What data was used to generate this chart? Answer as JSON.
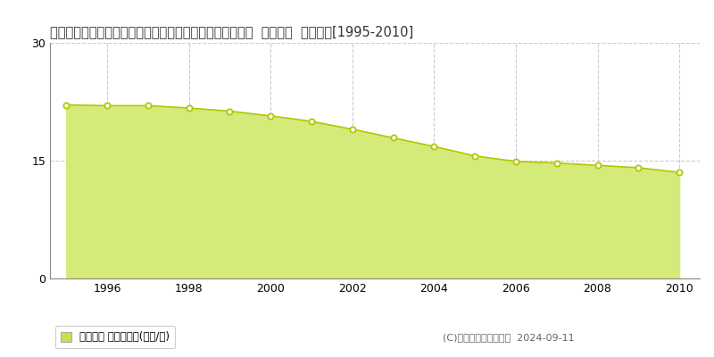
{
  "title": "栃木県下都賀郡野木町大字潤島字若林裏８００番２７３外  地価公示  地価推移[1995-2010]",
  "years": [
    1995,
    1996,
    1997,
    1998,
    1999,
    2000,
    2001,
    2002,
    2003,
    2004,
    2005,
    2006,
    2007,
    2008,
    2009,
    2010
  ],
  "values": [
    22.1,
    22.0,
    22.0,
    21.7,
    21.3,
    20.7,
    20.0,
    19.0,
    17.9,
    16.8,
    15.6,
    14.9,
    14.7,
    14.4,
    14.1,
    13.5
  ],
  "fill_color": "#d4eb7a",
  "line_color": "#b0c800",
  "marker_facecolor": "#ffffff",
  "marker_edgecolor": "#b0c800",
  "ylim": [
    0,
    30
  ],
  "yticks": [
    0,
    15,
    30
  ],
  "xlim_left": 1994.6,
  "xlim_right": 2010.5,
  "xticks": [
    1996,
    1998,
    2000,
    2002,
    2004,
    2006,
    2008,
    2010
  ],
  "background_color": "#ffffff",
  "grid_color": "#cccccc",
  "legend_label": "地価公示 平均坪単価(万円/坪)",
  "legend_square_color": "#c8e050",
  "copyright_text": "(C)土地価格ドットコム  2024-09-11",
  "title_fontsize": 10.5,
  "axis_fontsize": 9
}
